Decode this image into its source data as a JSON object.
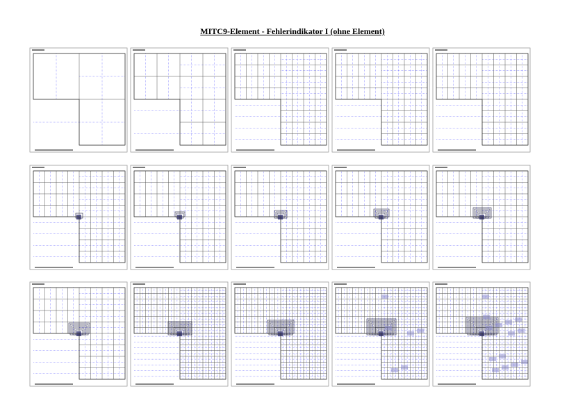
{
  "header": {
    "title": "MITC9-Element - Fehlerindikator I (ohne Element)"
  }
}
